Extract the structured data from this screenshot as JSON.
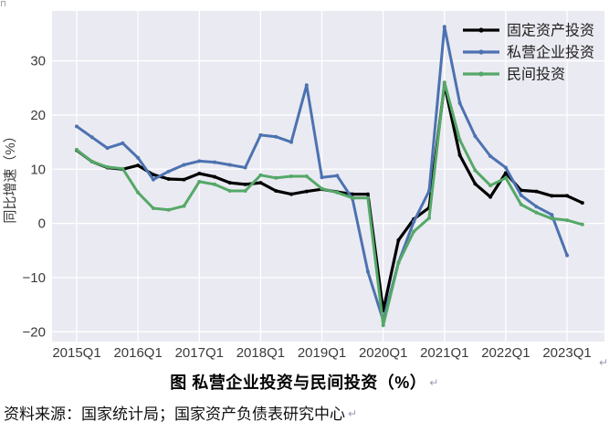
{
  "chart_data": {
    "type": "line",
    "title": "",
    "ylabel": "同比增速（%）",
    "xlabel": "",
    "ylim": [
      -21.8,
      39.2
    ],
    "grid": "on",
    "legend_position": "top-right",
    "background_color": "#EAEAF2",
    "gridline_color": "#FFFFFF",
    "categories": [
      "2015Q1",
      "2015Q2",
      "2015Q3",
      "2015Q4",
      "2016Q1",
      "2016Q2",
      "2016Q3",
      "2016Q4",
      "2017Q1",
      "2017Q2",
      "2017Q3",
      "2017Q4",
      "2018Q1",
      "2018Q2",
      "2018Q3",
      "2018Q4",
      "2019Q1",
      "2019Q2",
      "2019Q3",
      "2019Q4",
      "2020Q1",
      "2020Q2",
      "2020Q3",
      "2020Q4",
      "2021Q1",
      "2021Q2",
      "2021Q3",
      "2021Q4",
      "2022Q1",
      "2022Q2",
      "2022Q3",
      "2022Q4",
      "2023Q1",
      "2023Q2"
    ],
    "xtick_labels": [
      "2015Q1",
      "2016Q1",
      "2017Q1",
      "2018Q1",
      "2019Q1",
      "2020Q1",
      "2021Q1",
      "2022Q1",
      "2023Q1"
    ],
    "ytick_values": [
      -20,
      -10,
      0,
      10,
      20,
      30
    ],
    "ytick_labels": [
      "−20",
      "−10",
      "0",
      "10",
      "20",
      "30"
    ],
    "series": [
      {
        "name": "固定资产投资",
        "color": "#000000",
        "values": [
          13.5,
          11.4,
          10.3,
          10.0,
          10.7,
          9.0,
          8.2,
          8.1,
          9.2,
          8.6,
          7.5,
          7.2,
          7.5,
          6.0,
          5.4,
          5.9,
          6.3,
          5.8,
          5.4,
          5.4,
          -16.1,
          -3.1,
          0.8,
          2.9,
          25.6,
          12.6,
          7.3,
          4.9,
          9.3,
          6.1,
          5.9,
          5.1,
          5.1,
          3.8
        ]
      },
      {
        "name": "私营企业投资",
        "color": "#4C72B0",
        "values": [
          17.9,
          15.9,
          13.9,
          14.8,
          12.1,
          8.1,
          9.6,
          10.8,
          11.5,
          11.3,
          10.8,
          10.3,
          16.3,
          16.0,
          15.0,
          25.5,
          8.5,
          8.8,
          4.5,
          -8.9,
          -17.9,
          -7.2,
          0.3,
          6.0,
          36.3,
          22.2,
          16.1,
          12.4,
          10.3,
          5.2,
          3.1,
          1.6,
          -5.9,
          null
        ]
      },
      {
        "name": "民间投资",
        "color": "#55A868",
        "values": [
          13.6,
          11.4,
          10.4,
          10.1,
          5.7,
          2.8,
          2.5,
          3.2,
          7.7,
          7.2,
          6.0,
          6.0,
          8.9,
          8.4,
          8.7,
          8.7,
          6.4,
          5.7,
          4.7,
          4.7,
          -18.8,
          -7.3,
          -1.5,
          1.0,
          26.0,
          15.4,
          9.8,
          7.0,
          8.4,
          3.5,
          2.0,
          0.9,
          0.6,
          -0.2
        ]
      }
    ]
  },
  "caption": "图  私营企业投资与民间投资（%）",
  "source_note": "资料来源：国家统计局；国家资产负债表研究中心",
  "word_marks": {
    "caption_return_mark": "↵",
    "source_return_mark": "↵",
    "figure_return_mark": "↵"
  }
}
